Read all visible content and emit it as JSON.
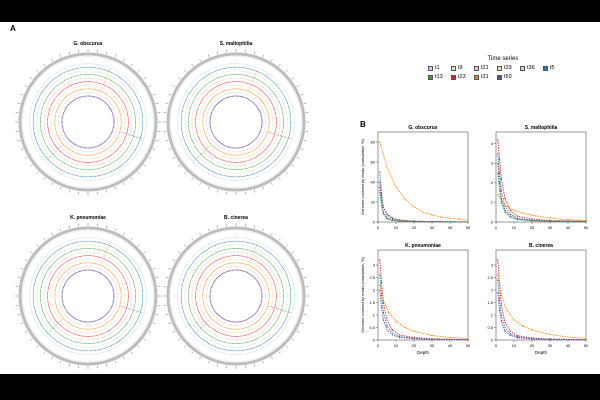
{
  "figure": {
    "panel_a_label": "A",
    "panel_b_label": "B"
  },
  "legend": {
    "title": "Time series",
    "entries": [
      {
        "label": "t1",
        "color": "#c3d8ea"
      },
      {
        "label": "t9",
        "color": "#cfe8c0"
      },
      {
        "label": "t21",
        "color": "#f6c6c6"
      },
      {
        "label": "t29",
        "color": "#fbd9a8"
      },
      {
        "label": "t36",
        "color": "#d8cbe6"
      },
      {
        "label": "t5",
        "color": "#1f78b4"
      },
      {
        "label": "t13",
        "color": "#33a02c"
      },
      {
        "label": "t23",
        "color": "#e31a1c"
      },
      {
        "label": "t31",
        "color": "#ff7f00"
      },
      {
        "label": "t50",
        "color": "#6a3d9a"
      }
    ]
  },
  "circos": [
    {
      "title": "G. obscurus"
    },
    {
      "title": "S. maltophilia"
    },
    {
      "title": "K. pneumoniae"
    },
    {
      "title": "B. cinerea"
    }
  ],
  "chart_data": [
    {
      "type": "line",
      "title": "G. obscurus",
      "xlabel": "",
      "ylabel": "Genome covered by reads (cumulative, %)",
      "xlim": [
        0,
        50
      ],
      "ylim": [
        0,
        90
      ],
      "xticks": [
        0,
        10,
        20,
        30,
        40,
        50
      ],
      "yticks": [
        0,
        20,
        40,
        60,
        80
      ],
      "series": [
        {
          "color": "#ff7f00",
          "x": [
            1,
            5,
            10,
            15,
            20,
            25,
            30,
            35,
            40,
            45,
            50
          ],
          "y": [
            80,
            55,
            35,
            23,
            15,
            10,
            7,
            5,
            4,
            3,
            2
          ]
        },
        {
          "color": "#e31a1c",
          "x": [
            1,
            2,
            3,
            5,
            8,
            12,
            20,
            30,
            50
          ],
          "y": [
            40,
            25,
            15,
            8,
            4,
            2,
            1,
            0.5,
            0.2
          ]
        },
        {
          "color": "#1f78b4",
          "x": [
            1,
            2,
            3,
            5,
            8,
            12,
            20,
            30,
            50
          ],
          "y": [
            50,
            28,
            15,
            7,
            3,
            1.5,
            0.6,
            0.3,
            0.1
          ]
        },
        {
          "color": "#6a3d9a",
          "x": [
            1,
            2,
            3,
            5,
            8,
            12,
            20,
            30,
            50
          ],
          "y": [
            35,
            20,
            10,
            4,
            2,
            1,
            0.4,
            0.2,
            0.1
          ]
        },
        {
          "color": "#33a02c",
          "x": [
            1,
            2,
            3,
            5,
            8,
            12,
            20,
            30,
            50
          ],
          "y": [
            30,
            16,
            8,
            3,
            1.5,
            0.8,
            0.3,
            0.1,
            0.05
          ]
        }
      ]
    },
    {
      "type": "line",
      "title": "S. maltophilia",
      "xlabel": "",
      "ylabel": "",
      "xlim": [
        0,
        50
      ],
      "ylim": [
        0,
        4.6
      ],
      "xticks": [
        0,
        10,
        20,
        30,
        40,
        50
      ],
      "yticks": [
        0,
        1,
        2,
        3,
        4
      ],
      "series": [
        {
          "color": "#e31a1c",
          "x": [
            1,
            2,
            3,
            5,
            8,
            12,
            20,
            30,
            50
          ],
          "y": [
            4.2,
            3.2,
            2.2,
            1.2,
            0.6,
            0.3,
            0.15,
            0.08,
            0.04
          ]
        },
        {
          "color": "#1f78b4",
          "x": [
            1,
            2,
            3,
            5,
            8,
            12,
            20,
            30,
            50
          ],
          "y": [
            3.5,
            2.5,
            1.6,
            0.8,
            0.4,
            0.2,
            0.1,
            0.05,
            0.02
          ]
        },
        {
          "color": "#6a3d9a",
          "x": [
            1,
            2,
            3,
            5,
            8,
            12,
            20,
            30,
            50
          ],
          "y": [
            3.0,
            2.0,
            1.2,
            0.6,
            0.3,
            0.15,
            0.07,
            0.04,
            0.02
          ]
        },
        {
          "color": "#ff7f00",
          "x": [
            1,
            3,
            6,
            10,
            15,
            20,
            30,
            40,
            50
          ],
          "y": [
            1.4,
            1.1,
            0.8,
            0.6,
            0.45,
            0.35,
            0.2,
            0.12,
            0.08
          ]
        },
        {
          "color": "#33a02c",
          "x": [
            1,
            2,
            3,
            5,
            8,
            12,
            20,
            30,
            50
          ],
          "y": [
            2.5,
            1.6,
            1.0,
            0.5,
            0.25,
            0.12,
            0.06,
            0.03,
            0.01
          ]
        }
      ]
    },
    {
      "type": "line",
      "title": "K. pneumoniae",
      "xlabel": "Depth",
      "ylabel": "Genome covered by reads (cumulative, %)",
      "xlim": [
        0,
        50
      ],
      "ylim": [
        0,
        3.6
      ],
      "xticks": [
        0,
        10,
        20,
        30,
        40,
        50
      ],
      "yticks": [
        0,
        0.5,
        1,
        1.5,
        2,
        2.5,
        3
      ],
      "series": [
        {
          "color": "#e31a1c",
          "x": [
            1,
            2,
            3,
            5,
            8,
            12,
            20,
            30,
            50
          ],
          "y": [
            3.2,
            2.3,
            1.5,
            0.8,
            0.4,
            0.2,
            0.1,
            0.05,
            0.02
          ]
        },
        {
          "color": "#1f78b4",
          "x": [
            1,
            2,
            3,
            5,
            8,
            12,
            20,
            30,
            50
          ],
          "y": [
            2.6,
            1.8,
            1.1,
            0.55,
            0.28,
            0.14,
            0.07,
            0.03,
            0.01
          ]
        },
        {
          "color": "#ff7f00",
          "x": [
            1,
            3,
            6,
            10,
            15,
            20,
            30,
            40,
            50
          ],
          "y": [
            2.2,
            1.6,
            1.1,
            0.75,
            0.5,
            0.35,
            0.18,
            0.1,
            0.06
          ]
        },
        {
          "color": "#6a3d9a",
          "x": [
            1,
            2,
            3,
            5,
            8,
            12,
            20,
            30,
            50
          ],
          "y": [
            2.0,
            1.3,
            0.8,
            0.4,
            0.2,
            0.1,
            0.05,
            0.02,
            0.01
          ]
        }
      ]
    },
    {
      "type": "line",
      "title": "B. cinerea",
      "xlabel": "Depth",
      "ylabel": "",
      "xlim": [
        0,
        50
      ],
      "ylim": [
        0,
        3.6
      ],
      "xticks": [
        0,
        10,
        20,
        30,
        40,
        50
      ],
      "yticks": [
        0,
        0.5,
        1,
        1.5,
        2,
        2.5,
        3
      ],
      "series": [
        {
          "color": "#e31a1c",
          "x": [
            1,
            2,
            3,
            5,
            8,
            12,
            20,
            30,
            50
          ],
          "y": [
            3.2,
            2.2,
            1.4,
            0.7,
            0.35,
            0.17,
            0.08,
            0.04,
            0.02
          ]
        },
        {
          "color": "#ff7f00",
          "x": [
            1,
            3,
            6,
            10,
            15,
            20,
            30,
            40,
            50
          ],
          "y": [
            2.6,
            1.8,
            1.2,
            0.8,
            0.55,
            0.4,
            0.22,
            0.12,
            0.07
          ]
        },
        {
          "color": "#1f78b4",
          "x": [
            1,
            2,
            3,
            5,
            8,
            12,
            20,
            30,
            50
          ],
          "y": [
            2.4,
            1.6,
            1.0,
            0.5,
            0.25,
            0.12,
            0.06,
            0.03,
            0.01
          ]
        },
        {
          "color": "#6a3d9a",
          "x": [
            1,
            2,
            3,
            5,
            8,
            12,
            20,
            30,
            50
          ],
          "y": [
            1.9,
            1.2,
            0.75,
            0.35,
            0.18,
            0.09,
            0.04,
            0.02,
            0.01
          ]
        }
      ]
    }
  ]
}
